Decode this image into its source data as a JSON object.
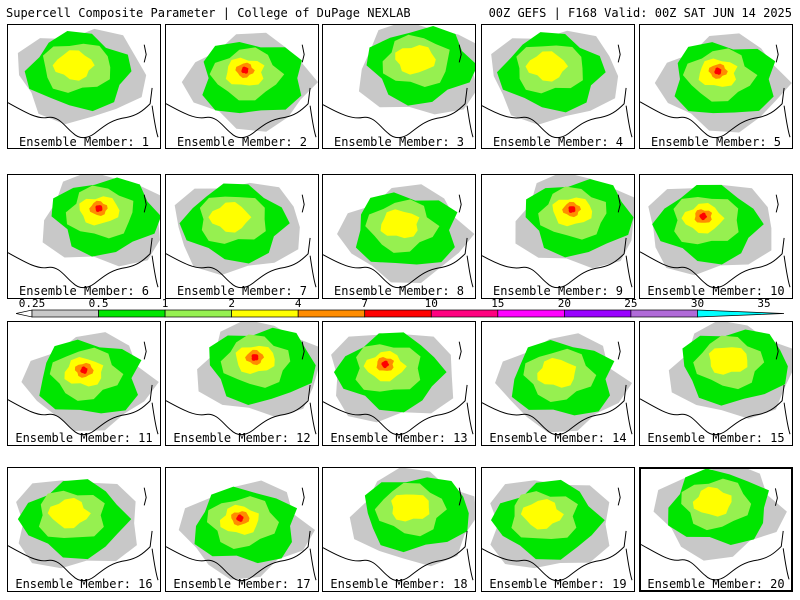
{
  "header": {
    "left": "Supercell Composite Parameter | College of DuPage NEXLAB",
    "right": "00Z GEFS | F168 Valid: 00Z SAT JUN 14 2025"
  },
  "label_prefix": "Ensemble Member:",
  "members": [
    1,
    2,
    3,
    4,
    5,
    6,
    7,
    8,
    9,
    10,
    11,
    12,
    13,
    14,
    15,
    16,
    17,
    18,
    19,
    20
  ],
  "selected_member": 20,
  "colorbar": {
    "levels": [
      "0.25",
      "0.5",
      "1",
      "2",
      "4",
      "7",
      "10",
      "15",
      "20",
      "25",
      "30",
      "35"
    ],
    "colors": [
      "#ffffff",
      "#c8c8c8",
      "#00e600",
      "#96f050",
      "#ffff00",
      "#ff8c00",
      "#ff0000",
      "#ff0080",
      "#ff00ff",
      "#9900ff",
      "#b06ad8",
      "#00ffff"
    ]
  },
  "map_colors": {
    "background": "#ffffff",
    "coastline": "#000000",
    "lowest_contour": "#c8c8c8",
    "green": "#00e600",
    "light_green": "#96f050",
    "yellow": "#ffff00",
    "orange": "#ff8c00",
    "red": "#ff0000"
  }
}
